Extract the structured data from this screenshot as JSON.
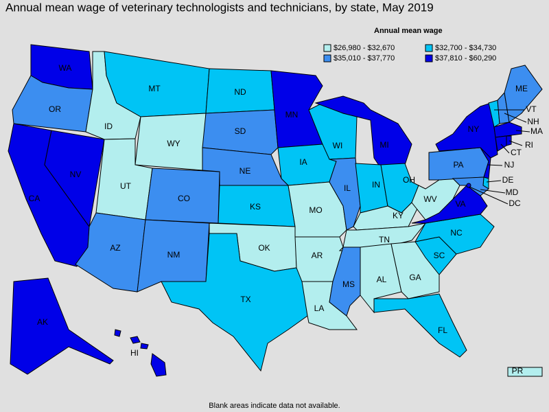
{
  "title": "Annual mean wage of veterinary technologists and technicians, by state, May 2019",
  "legend": {
    "title": "Annual mean wage",
    "items": [
      {
        "label": "$26,980 - $32,670",
        "color": "#b3eeee"
      },
      {
        "label": "$32,700 - $34,730",
        "color": "#00c4f5"
      },
      {
        "label": "$35,010 - $37,770",
        "color": "#3c8ef0"
      },
      {
        "label": "$37,810 - $60,290",
        "color": "#0000e8"
      }
    ]
  },
  "states": [
    {
      "abbr": "WA",
      "bin": 3
    },
    {
      "abbr": "OR",
      "bin": 2
    },
    {
      "abbr": "CA",
      "bin": 3
    },
    {
      "abbr": "NV",
      "bin": 3
    },
    {
      "abbr": "ID",
      "bin": 0
    },
    {
      "abbr": "MT",
      "bin": 1
    },
    {
      "abbr": "WY",
      "bin": 0
    },
    {
      "abbr": "UT",
      "bin": 0
    },
    {
      "abbr": "CO",
      "bin": 2
    },
    {
      "abbr": "AZ",
      "bin": 2
    },
    {
      "abbr": "NM",
      "bin": 2
    },
    {
      "abbr": "ND",
      "bin": 1
    },
    {
      "abbr": "SD",
      "bin": 2
    },
    {
      "abbr": "NE",
      "bin": 2
    },
    {
      "abbr": "KS",
      "bin": 1
    },
    {
      "abbr": "OK",
      "bin": 0
    },
    {
      "abbr": "TX",
      "bin": 1
    },
    {
      "abbr": "MN",
      "bin": 3
    },
    {
      "abbr": "IA",
      "bin": 1
    },
    {
      "abbr": "MO",
      "bin": 0
    },
    {
      "abbr": "AR",
      "bin": 0
    },
    {
      "abbr": "LA",
      "bin": 0
    },
    {
      "abbr": "WI",
      "bin": 1
    },
    {
      "abbr": "IL",
      "bin": 2
    },
    {
      "abbr": "MI",
      "bin": 3
    },
    {
      "abbr": "IN",
      "bin": 1
    },
    {
      "abbr": "OH",
      "bin": 1
    },
    {
      "abbr": "KY",
      "bin": 0
    },
    {
      "abbr": "TN",
      "bin": 0
    },
    {
      "abbr": "MS",
      "bin": 2
    },
    {
      "abbr": "AL",
      "bin": 0
    },
    {
      "abbr": "GA",
      "bin": 0
    },
    {
      "abbr": "FL",
      "bin": 1
    },
    {
      "abbr": "SC",
      "bin": 1
    },
    {
      "abbr": "NC",
      "bin": 1
    },
    {
      "abbr": "VA",
      "bin": 3
    },
    {
      "abbr": "WV",
      "bin": 0
    },
    {
      "abbr": "PA",
      "bin": 2
    },
    {
      "abbr": "NY",
      "bin": 3
    },
    {
      "abbr": "NJ",
      "bin": 3
    },
    {
      "abbr": "DE",
      "bin": 1
    },
    {
      "abbr": "MD",
      "bin": 2
    },
    {
      "abbr": "DC",
      "bin": 3
    },
    {
      "abbr": "VT",
      "bin": 1
    },
    {
      "abbr": "NH",
      "bin": 2
    },
    {
      "abbr": "ME",
      "bin": 2
    },
    {
      "abbr": "MA",
      "bin": 3
    },
    {
      "abbr": "CT",
      "bin": 3
    },
    {
      "abbr": "RI",
      "bin": 3
    },
    {
      "abbr": "AK",
      "bin": 3
    },
    {
      "abbr": "HI",
      "bin": 3
    },
    {
      "abbr": "PR",
      "bin": 0
    }
  ],
  "footnote": "Blank areas indicate data not available."
}
